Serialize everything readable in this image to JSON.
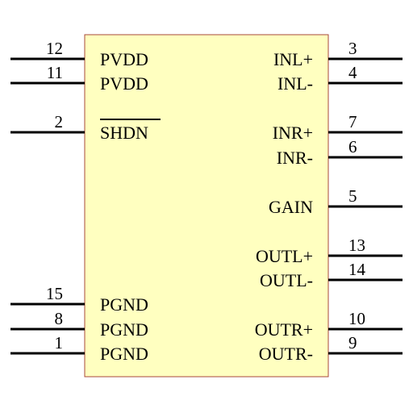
{
  "colors": {
    "body_fill": "#ffffc0",
    "body_stroke": "#aa4a3a",
    "pin_line": "#000000"
  },
  "pins_left": [
    {
      "number": "12",
      "label": "PVDD",
      "overline": false
    },
    {
      "number": "11",
      "label": "PVDD",
      "overline": false
    },
    {
      "number": "2",
      "label": "SHDN",
      "overline": true
    },
    {
      "number": "15",
      "label": "PGND",
      "overline": false
    },
    {
      "number": "8",
      "label": "PGND",
      "overline": false
    },
    {
      "number": "1",
      "label": "PGND",
      "overline": false
    }
  ],
  "pins_right": [
    {
      "number": "3",
      "label": "INL+"
    },
    {
      "number": "4",
      "label": "INL-"
    },
    {
      "number": "7",
      "label": "INR+"
    },
    {
      "number": "6",
      "label": "INR-"
    },
    {
      "number": "5",
      "label": "GAIN"
    },
    {
      "number": "13",
      "label": "OUTL+"
    },
    {
      "number": "14",
      "label": "OUTL-"
    },
    {
      "number": "10",
      "label": "OUTR+"
    },
    {
      "number": "9",
      "label": "OUTR-"
    }
  ]
}
